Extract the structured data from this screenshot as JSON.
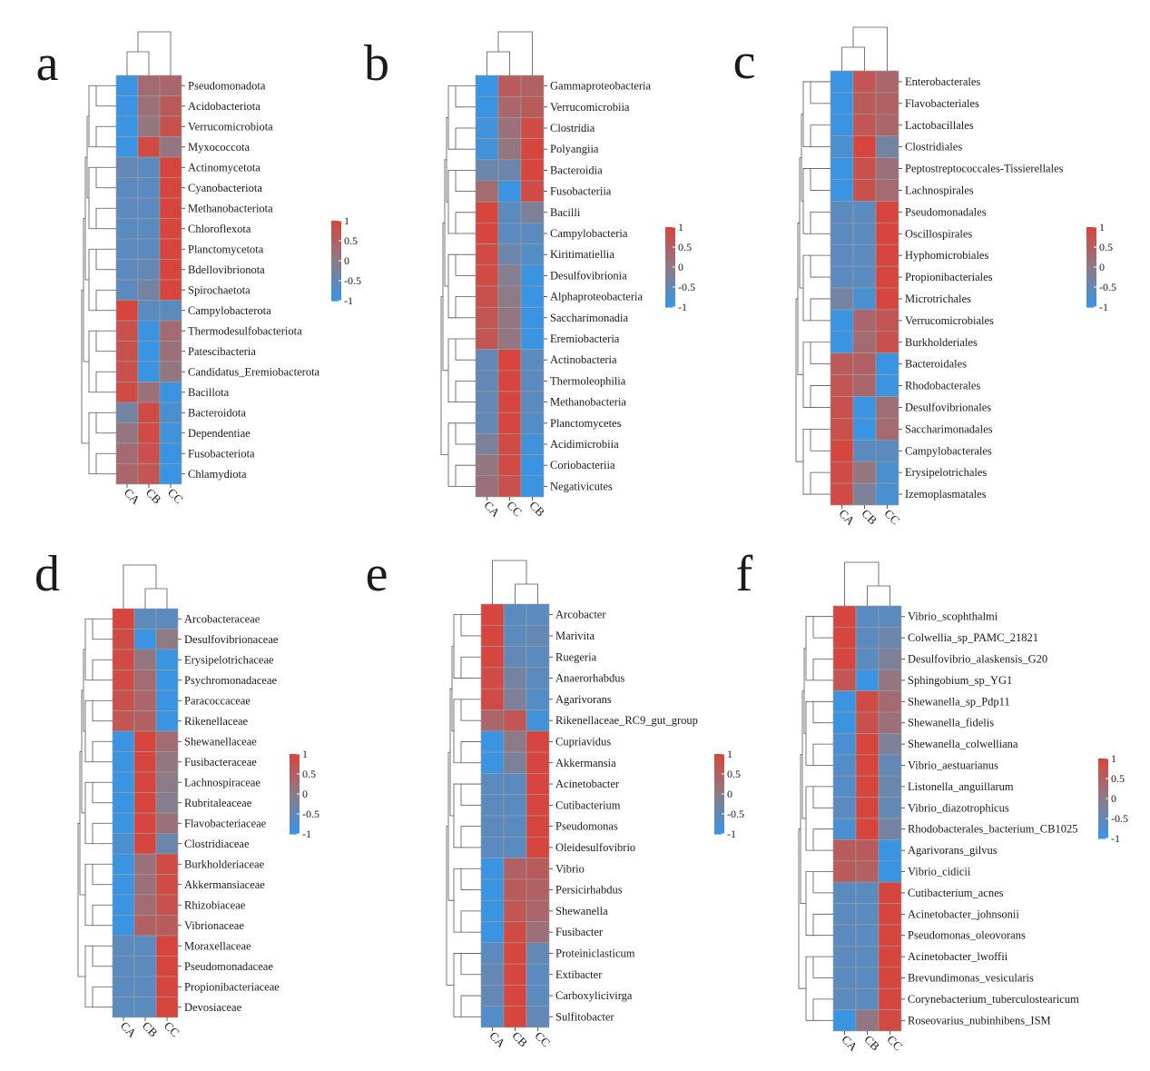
{
  "colors": {
    "high": "#d7463e",
    "mid": "#8c7b87",
    "low": "#3a94e2",
    "grid": "#a0a0a0",
    "tree": "#555555"
  },
  "legend": {
    "ticks": [
      "1",
      "0.5",
      "0",
      "-0.5",
      "-1"
    ]
  },
  "chart_data": [
    {
      "type": "heatmap",
      "panel": "a",
      "columns": [
        "CA",
        "CB",
        "CC"
      ],
      "rows": [
        {
          "label": "Pseudomonadota",
          "values": [
            -1,
            0.3,
            0.4
          ]
        },
        {
          "label": "Acidobacteriota",
          "values": [
            -1,
            0.2,
            0.6
          ]
        },
        {
          "label": "Verrucomicrobiota",
          "values": [
            -1,
            0.1,
            0.8
          ]
        },
        {
          "label": "Myxococcota",
          "values": [
            -1,
            0.9,
            0.1
          ]
        },
        {
          "label": "Actinomycetota",
          "values": [
            -0.5,
            -0.6,
            1
          ]
        },
        {
          "label": "Cyanobacteriota",
          "values": [
            -0.6,
            -0.6,
            1
          ]
        },
        {
          "label": "Methanobacteriota",
          "values": [
            -0.6,
            -0.6,
            1
          ]
        },
        {
          "label": "Chloroflexota",
          "values": [
            -0.6,
            -0.6,
            1
          ]
        },
        {
          "label": "Planctomycetota",
          "values": [
            -0.6,
            -0.6,
            1
          ]
        },
        {
          "label": "Bdellovibrionota",
          "values": [
            -0.6,
            -0.5,
            1
          ]
        },
        {
          "label": "Spirochaetota",
          "values": [
            -0.6,
            -0.3,
            1
          ]
        },
        {
          "label": "Campylobacterota",
          "values": [
            1,
            -0.6,
            -0.6
          ]
        },
        {
          "label": "Thermodesulfobacteriota",
          "values": [
            0.8,
            -1,
            0.3
          ]
        },
        {
          "label": "Patescibacteria",
          "values": [
            0.8,
            -1,
            0.2
          ]
        },
        {
          "label": "Candidatus_Eremiobacterota",
          "values": [
            0.8,
            -1,
            0.1
          ]
        },
        {
          "label": "Bacillota",
          "values": [
            0.9,
            0.2,
            -1
          ]
        },
        {
          "label": "Bacteroidota",
          "values": [
            -0.3,
            0.9,
            -0.8
          ]
        },
        {
          "label": "Dependentiae",
          "values": [
            0.1,
            0.9,
            -0.9
          ]
        },
        {
          "label": "Fusobacteriota",
          "values": [
            0.3,
            0.8,
            -1
          ]
        },
        {
          "label": "Chlamydiota",
          "values": [
            0.4,
            0.7,
            -1
          ]
        }
      ]
    },
    {
      "type": "heatmap",
      "panel": "b",
      "columns": [
        "CA",
        "CC",
        "CB"
      ],
      "rows": [
        {
          "label": "Gammaproteobacteria",
          "values": [
            -1,
            0.6,
            0.5
          ]
        },
        {
          "label": "Verrucomicrobiia",
          "values": [
            -1,
            0.4,
            0.6
          ]
        },
        {
          "label": "Clostridia",
          "values": [
            -0.9,
            0.2,
            0.9
          ]
        },
        {
          "label": "Polyangiia",
          "values": [
            -0.9,
            0.1,
            1
          ]
        },
        {
          "label": "Bacteroidia",
          "values": [
            -0.4,
            -0.4,
            1
          ]
        },
        {
          "label": "Fusobacteriia",
          "values": [
            0.3,
            -1,
            0.9
          ]
        },
        {
          "label": "Bacilli",
          "values": [
            1,
            -0.6,
            -0.2
          ]
        },
        {
          "label": "Campylobacteria",
          "values": [
            1,
            -0.6,
            -0.6
          ]
        },
        {
          "label": "Kiritimatiellia",
          "values": [
            0.9,
            -0.4,
            -0.7
          ]
        },
        {
          "label": "Desulfovibrionia",
          "values": [
            0.9,
            -0.1,
            -1
          ]
        },
        {
          "label": "Alphaproteobacteria",
          "values": [
            0.8,
            0,
            -1
          ]
        },
        {
          "label": "Saccharimonadia",
          "values": [
            0.7,
            0.1,
            -1
          ]
        },
        {
          "label": "Eremiobacteria",
          "values": [
            0.7,
            0.1,
            -1
          ]
        },
        {
          "label": "Actinobacteria",
          "values": [
            -0.5,
            1,
            -0.6
          ]
        },
        {
          "label": "Thermoleophilia",
          "values": [
            -0.5,
            1,
            -0.6
          ]
        },
        {
          "label": "Methanobacteria",
          "values": [
            -0.5,
            1,
            -0.6
          ]
        },
        {
          "label": "Planctomycetes",
          "values": [
            -0.5,
            1,
            -0.7
          ]
        },
        {
          "label": "Acidimicrobiia",
          "values": [
            -0.2,
            0.9,
            -0.9
          ]
        },
        {
          "label": "Coriobacteriia",
          "values": [
            0.1,
            0.9,
            -1
          ]
        },
        {
          "label": "Negativicutes",
          "values": [
            0.2,
            0.8,
            -1
          ]
        }
      ]
    },
    {
      "type": "heatmap",
      "panel": "c",
      "columns": [
        "CA",
        "CB",
        "CC"
      ],
      "rows": [
        {
          "label": "Enterobacterales",
          "values": [
            -1,
            0.7,
            0.4
          ]
        },
        {
          "label": "Flavobacteriales",
          "values": [
            -1,
            0.6,
            0.5
          ]
        },
        {
          "label": "Lactobacillales",
          "values": [
            -1,
            0.7,
            0.4
          ]
        },
        {
          "label": "Clostridiales",
          "values": [
            -0.8,
            1,
            -0.3
          ]
        },
        {
          "label": "Peptostreptococcales-Tissierellales",
          "values": [
            -1,
            0.8,
            0.2
          ]
        },
        {
          "label": "Lachnospirales",
          "values": [
            -1,
            0.8,
            0.3
          ]
        },
        {
          "label": "Pseudomonadales",
          "values": [
            -0.6,
            -0.6,
            1
          ]
        },
        {
          "label": "Oscillospirales",
          "values": [
            -0.6,
            -0.6,
            1
          ]
        },
        {
          "label": "Hyphomicrobiales",
          "values": [
            -0.6,
            -0.6,
            1
          ]
        },
        {
          "label": "Propionibacteriales",
          "values": [
            -0.6,
            -0.6,
            1
          ]
        },
        {
          "label": "Microtrichales",
          "values": [
            -0.3,
            -0.8,
            1
          ]
        },
        {
          "label": "Verrucomicrobiales",
          "values": [
            -1,
            0.4,
            0.7
          ]
        },
        {
          "label": "Burkholderiales",
          "values": [
            -1,
            0.3,
            0.8
          ]
        },
        {
          "label": "Bacteroidales",
          "values": [
            0.6,
            0.5,
            -1
          ]
        },
        {
          "label": "Rhodobacterales",
          "values": [
            0.7,
            0.4,
            -1
          ]
        },
        {
          "label": "Desulfovibrionales",
          "values": [
            0.8,
            -1,
            0.2
          ]
        },
        {
          "label": "Saccharimonadales",
          "values": [
            0.8,
            -1,
            0.3
          ]
        },
        {
          "label": "Campylobacterales",
          "values": [
            1,
            -0.6,
            -0.6
          ]
        },
        {
          "label": "Erysipelotrichales",
          "values": [
            0.9,
            0.1,
            -0.8
          ]
        },
        {
          "label": "Izemoplasmatales",
          "values": [
            0.9,
            -0.2,
            -0.8
          ]
        }
      ]
    },
    {
      "type": "heatmap",
      "panel": "d",
      "columns": [
        "CA",
        "CB",
        "CC"
      ],
      "rows": [
        {
          "label": "Arcobacteraceae",
          "values": [
            1,
            -0.6,
            -0.6
          ]
        },
        {
          "label": "Desulfovibrionaceae",
          "values": [
            0.9,
            -1,
            0
          ]
        },
        {
          "label": "Erysipelotrichaceae",
          "values": [
            0.9,
            0.1,
            -1
          ]
        },
        {
          "label": "Psychromonadaceae",
          "values": [
            0.9,
            0.3,
            -1
          ]
        },
        {
          "label": "Paracoccaceae",
          "values": [
            0.8,
            0.4,
            -1
          ]
        },
        {
          "label": "Rikenellaceae",
          "values": [
            0.7,
            0.5,
            -1
          ]
        },
        {
          "label": "Shewanellaceae",
          "values": [
            -1,
            1,
            0.3
          ]
        },
        {
          "label": "Fusibacteraceae",
          "values": [
            -1,
            1,
            0.1
          ]
        },
        {
          "label": "Lachnospiraceae",
          "values": [
            -1,
            1,
            0
          ]
        },
        {
          "label": "Rubritaleaceae",
          "values": [
            -1,
            1,
            -0.1
          ]
        },
        {
          "label": "Flavobacteriaceae",
          "values": [
            -1,
            1,
            0.2
          ]
        },
        {
          "label": "Clostridiaceae",
          "values": [
            -0.8,
            1,
            -0.4
          ]
        },
        {
          "label": "Burkholderiaceae",
          "values": [
            -1,
            0.2,
            0.9
          ]
        },
        {
          "label": "Akkermansiaceae",
          "values": [
            -1,
            0.2,
            0.9
          ]
        },
        {
          "label": "Rhizobiaceae",
          "values": [
            -1,
            0.3,
            0.8
          ]
        },
        {
          "label": "Vibrionaceae",
          "values": [
            -1,
            0.5,
            0.6
          ]
        },
        {
          "label": "Moraxellaceae",
          "values": [
            -0.6,
            -0.6,
            1
          ]
        },
        {
          "label": "Pseudomonadaceae",
          "values": [
            -0.6,
            -0.6,
            1
          ]
        },
        {
          "label": "Propionibacteriaceae",
          "values": [
            -0.6,
            -0.6,
            1
          ]
        },
        {
          "label": "Devosiaceae",
          "values": [
            -0.6,
            -0.6,
            1
          ]
        }
      ]
    },
    {
      "type": "heatmap",
      "panel": "e",
      "columns": [
        "CA",
        "CB",
        "CC"
      ],
      "rows": [
        {
          "label": "Arcobacter",
          "values": [
            1,
            -0.6,
            -0.6
          ]
        },
        {
          "label": "Marivita",
          "values": [
            1,
            -0.6,
            -0.5
          ]
        },
        {
          "label": "Ruegeria",
          "values": [
            1,
            -0.5,
            -0.6
          ]
        },
        {
          "label": "Anaerorhabdus",
          "values": [
            0.9,
            -0.3,
            -0.6
          ]
        },
        {
          "label": "Agarivorans",
          "values": [
            0.9,
            -0.2,
            -0.7
          ]
        },
        {
          "label": "Rikenellaceae_RC9_gut_group",
          "values": [
            0.4,
            0.7,
            -0.9
          ]
        },
        {
          "label": "Cupriavidus",
          "values": [
            -1,
            0,
            1
          ]
        },
        {
          "label": "Akkermansia",
          "values": [
            -1,
            -0.2,
            1
          ]
        },
        {
          "label": "Acinetobacter",
          "values": [
            -0.6,
            -0.6,
            1
          ]
        },
        {
          "label": "Cutibacterium",
          "values": [
            -0.6,
            -0.6,
            1
          ]
        },
        {
          "label": "Pseudomonas",
          "values": [
            -0.6,
            -0.6,
            1
          ]
        },
        {
          "label": "Oleidesulfovibrio",
          "values": [
            -0.6,
            -0.6,
            1
          ]
        },
        {
          "label": "Vibrio",
          "values": [
            -1,
            0.5,
            0.6
          ]
        },
        {
          "label": "Persicirhabdus",
          "values": [
            -1,
            0.6,
            0.5
          ]
        },
        {
          "label": "Shewanella",
          "values": [
            -1,
            0.7,
            0.4
          ]
        },
        {
          "label": "Fusibacter",
          "values": [
            -1,
            0.9,
            0.2
          ]
        },
        {
          "label": "Proteiniclasticum",
          "values": [
            -0.6,
            1,
            -0.5
          ]
        },
        {
          "label": "Extibacter",
          "values": [
            -0.5,
            1,
            -0.6
          ]
        },
        {
          "label": "Carboxylicivirga",
          "values": [
            -0.5,
            1,
            -0.6
          ]
        },
        {
          "label": "Sulfitobacter",
          "values": [
            -0.7,
            1,
            -0.5
          ]
        }
      ]
    },
    {
      "type": "heatmap",
      "panel": "f",
      "columns": [
        "CA",
        "CB",
        "CC"
      ],
      "rows": [
        {
          "label": "Vibrio_scophthalmi",
          "values": [
            1,
            -0.6,
            -0.6
          ]
        },
        {
          "label": "Colwellia_sp_PAMC_21821",
          "values": [
            1,
            -0.6,
            -0.4
          ]
        },
        {
          "label": "Desulfovibrio_alaskensis_G20",
          "values": [
            1,
            -0.6,
            -0.2
          ]
        },
        {
          "label": "Sphingobium_sp_YG1",
          "values": [
            0.7,
            -1,
            0.1
          ]
        },
        {
          "label": "Shewanella_sp_Pdp11",
          "values": [
            -1,
            0.9,
            0.3
          ]
        },
        {
          "label": "Shewanella_fidelis",
          "values": [
            -1,
            0.8,
            0.2
          ]
        },
        {
          "label": "Shewanella_colwelliana",
          "values": [
            -0.8,
            1,
            -0.2
          ]
        },
        {
          "label": "Vibrio_aestuarianus",
          "values": [
            -0.7,
            1,
            -0.5
          ]
        },
        {
          "label": "Listonella_anguillarum",
          "values": [
            -0.7,
            1,
            -0.4
          ]
        },
        {
          "label": "Vibrio_diazotrophicus",
          "values": [
            -0.6,
            1,
            -0.5
          ]
        },
        {
          "label": "Rhodobacterales_bacterium_CB1025",
          "values": [
            -0.8,
            1,
            -0.3
          ]
        },
        {
          "label": "Agarivorans_gilvus",
          "values": [
            0.6,
            0.6,
            -1
          ]
        },
        {
          "label": "Vibrio_cidicii",
          "values": [
            0.6,
            0.5,
            -1
          ]
        },
        {
          "label": "Cutibacterium_acnes",
          "values": [
            -0.6,
            -0.6,
            1
          ]
        },
        {
          "label": "Acinetobacter_johnsonii",
          "values": [
            -0.6,
            -0.6,
            1
          ]
        },
        {
          "label": "Pseudomonas_oleovorans",
          "values": [
            -0.6,
            -0.6,
            1
          ]
        },
        {
          "label": "Acinetobacter_lwoffii",
          "values": [
            -0.6,
            -0.6,
            1
          ]
        },
        {
          "label": "Brevundimonas_vesicularis",
          "values": [
            -0.6,
            -0.6,
            1
          ]
        },
        {
          "label": "Corynebacterium_tuberculostearicum",
          "values": [
            -0.6,
            -0.6,
            1
          ]
        },
        {
          "label": "Roseovarius_nubinhibens_ISM",
          "values": [
            -1,
            0.1,
            0.9
          ]
        }
      ]
    }
  ]
}
